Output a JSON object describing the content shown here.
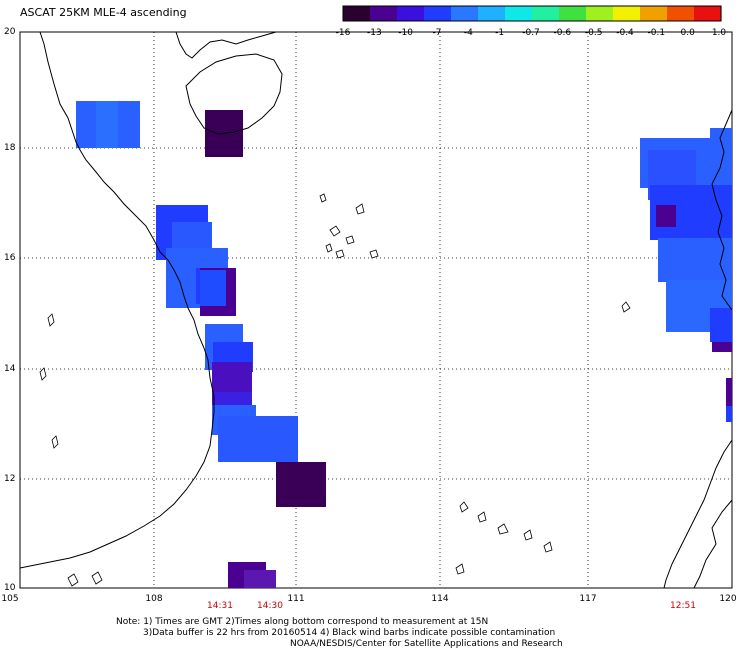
{
  "title": "ASCAT 25KM MLE-4 ascending",
  "colorbar": {
    "ticks": [
      "-16",
      "-13",
      "-10",
      "-7",
      "-4",
      "-1",
      "-0.7",
      "-0.6",
      "-0.5",
      "-0.4",
      "-0.1",
      "0.0",
      "1.0"
    ],
    "colors": [
      "#2a0030",
      "#4a0090",
      "#3a10e0",
      "#1f3cff",
      "#2a78ff",
      "#1fb0ff",
      "#10e8e8",
      "#20f0a0",
      "#40e040",
      "#a0f020",
      "#f0f000",
      "#f0a000",
      "#f05000",
      "#e81010"
    ]
  },
  "axes": {
    "lat_labels": [
      "20",
      "18",
      "16",
      "14",
      "12",
      "10"
    ],
    "lon_labels": [
      "105",
      "108",
      "111",
      "114",
      "117",
      "120"
    ],
    "lat_range": [
      10,
      20
    ],
    "lon_range": [
      105,
      120
    ]
  },
  "pass_times": [
    {
      "label": "14:31",
      "lon": 109.3
    },
    {
      "label": "14:30",
      "lon": 110.3
    },
    {
      "label": "12:51",
      "lon": 118.8
    }
  ],
  "notes": {
    "line1": "Note: 1) Times are GMT 2)Times along bottom correspond to measurement at 15N",
    "line2": "3)Data buffer is 22 hrs from 20160514 4) Black wind barbs indicate possible contamination",
    "line3": "NOAA/NESDIS/Center for Satellite Applications and Research"
  },
  "colors": {
    "navy_purple": "#3a0058",
    "deep_purple": "#4a0090",
    "violet": "#5a18b0",
    "blue": "#1f3cff",
    "azure": "#2a60ff",
    "light_blue": "#2a78ff"
  }
}
